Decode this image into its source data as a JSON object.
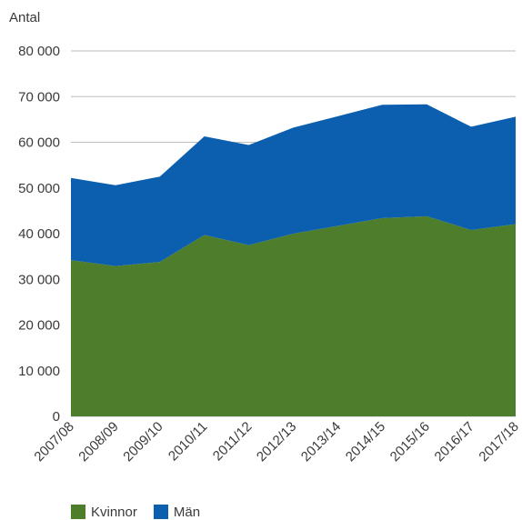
{
  "chart_data": {
    "type": "area",
    "stacked": true,
    "ylabel": "Antal",
    "ylim": [
      0,
      80000
    ],
    "yticks": [
      0,
      10000,
      20000,
      30000,
      40000,
      50000,
      60000,
      70000,
      80000
    ],
    "ytick_labels": [
      "0",
      "10 000",
      "20 000",
      "30 000",
      "40 000",
      "50 000",
      "60 000",
      "70 000",
      "80 000"
    ],
    "categories": [
      "2007/08",
      "2008/09",
      "2009/10",
      "2010/11",
      "2011/12",
      "2012/13",
      "2013/14",
      "2014/15",
      "2015/16",
      "2016/17",
      "2017/18"
    ],
    "series": [
      {
        "name": "Kvinnor",
        "color": "#4e7d2c",
        "values": [
          34200,
          32900,
          33800,
          39700,
          37500,
          40000,
          41700,
          43400,
          43800,
          40800,
          42100
        ]
      },
      {
        "name": "Män",
        "color": "#0b5fae",
        "values": [
          18000,
          17700,
          18700,
          21600,
          21900,
          23200,
          24000,
          24800,
          24500,
          22600,
          23500
        ]
      }
    ],
    "grid": "horizontal",
    "legend_position": "bottom-left"
  }
}
